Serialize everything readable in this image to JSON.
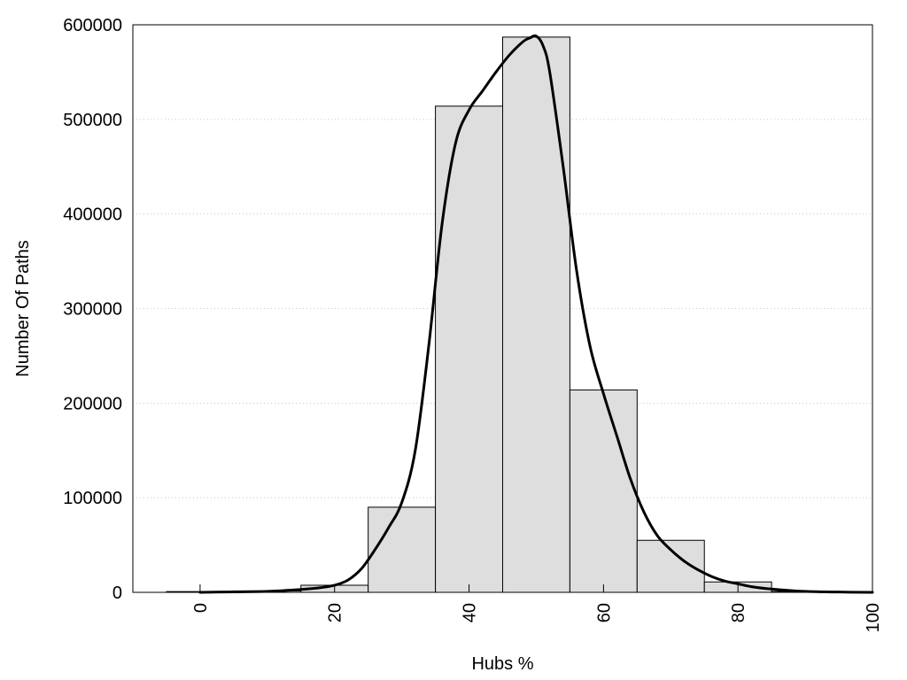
{
  "chart_data": {
    "type": "bar",
    "title": "",
    "xlabel": "Hubs %",
    "ylabel": "Number Of Paths",
    "xlim": [
      -10,
      100
    ],
    "ylim": [
      0,
      600000
    ],
    "x_ticks": [
      0,
      20,
      40,
      60,
      80,
      100
    ],
    "y_ticks": [
      0,
      100000,
      200000,
      300000,
      400000,
      500000,
      600000
    ],
    "grid": "horizontal dotted",
    "bar_width": 10,
    "bars": [
      {
        "x": 0,
        "value": 800
      },
      {
        "x": 10,
        "value": 1500
      },
      {
        "x": 20,
        "value": 7500
      },
      {
        "x": 30,
        "value": 90000
      },
      {
        "x": 40,
        "value": 514000
      },
      {
        "x": 50,
        "value": 587000
      },
      {
        "x": 60,
        "value": 214000
      },
      {
        "x": 70,
        "value": 55000
      },
      {
        "x": 80,
        "value": 11000
      },
      {
        "x": 90,
        "value": 1000
      }
    ],
    "curve": {
      "x": [
        0,
        5,
        10,
        15,
        18,
        20,
        22,
        24,
        26,
        28,
        30,
        32,
        34,
        36,
        38,
        40,
        42,
        44,
        46,
        48,
        49,
        50,
        51,
        52,
        54,
        56,
        58,
        60,
        62,
        64,
        66,
        68,
        70,
        72,
        74,
        76,
        78,
        80,
        82,
        85,
        90,
        95,
        100
      ],
      "y": [
        0,
        500,
        1000,
        3000,
        5000,
        7500,
        13000,
        25000,
        45000,
        68000,
        95000,
        150000,
        260000,
        390000,
        475000,
        510000,
        530000,
        550000,
        568000,
        582000,
        586000,
        588000,
        578000,
        550000,
        450000,
        340000,
        260000,
        210000,
        165000,
        120000,
        85000,
        60000,
        45000,
        33000,
        24000,
        17000,
        12000,
        9000,
        6000,
        3500,
        1000,
        300,
        50
      ]
    }
  }
}
